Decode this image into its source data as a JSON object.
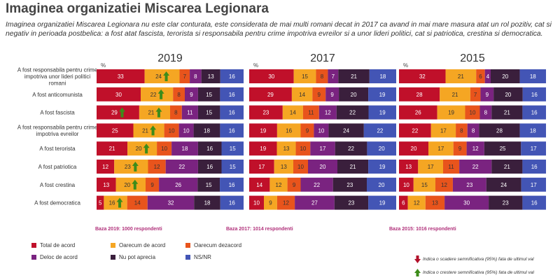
{
  "page": {
    "title": "Imaginea organizatiei Miscarea Legionara",
    "subtitle": "Imaginea organizatiei Miscarea Legionara nu este clar conturata, este considerata de mai multi romani decat in 2017 ca avand in mai mare masura atat un rol pozitiv, cat si negativ in perioada postbelica: a fost atat fascista, terorista si responsabila pentru crime impotriva evreilor si a unor lideri politici, cat si patriotica, crestina si democratica."
  },
  "colors": {
    "total_de_acord": "#c0102a",
    "oarecum_de_acord": "#f5a623",
    "oarecum_dezacord": "#e8541c",
    "deloc_de_acord": "#7a2380",
    "nu_pot_aprecia": "#3a1f3c",
    "ns_nr": "#4355b5",
    "increase_arrow": "#3d8c1a",
    "decrease_arrow": "#b2102a"
  },
  "legend": {
    "items": [
      {
        "key": "total_de_acord",
        "label": "Total de acord"
      },
      {
        "key": "oarecum_de_acord",
        "label": "Oarecum de acord"
      },
      {
        "key": "oarecum_dezacord",
        "label": "Oarecum dezacord"
      },
      {
        "key": "deloc_de_acord",
        "label": "Deloc de acord"
      },
      {
        "key": "nu_pot_aprecia",
        "label": "Nu pot aprecia"
      },
      {
        "key": "ns_nr",
        "label": "NS/NR"
      }
    ],
    "decrease_note": "Indica o scadere semnificativa (95%) fata de ultimul val",
    "increase_note": "Indica o crestere semnificativa (95%) fata de ultimul val"
  },
  "chart_data": {
    "type": "bar",
    "orientation": "horizontal",
    "stacked": true,
    "unit_label": "%",
    "categories": [
      "A fost responsabila pentru crime impotriva unor lideri politici romani",
      "A fost anticomunista",
      "A fost fascista",
      "A fost responsabila pentru crime impotriva evreilor",
      "A fost terorista",
      "A fost patriotica",
      "A fost crestina",
      "A fost democratica"
    ],
    "series_names": [
      "Total de acord",
      "Oarecum de acord",
      "Oarecum dezacord",
      "Deloc de acord",
      "Nu pot aprecia",
      "NS/NR"
    ],
    "panels": [
      {
        "year": "2019",
        "base": "Baza 2019: 1000 respondenti",
        "values": [
          [
            33,
            24,
            7,
            8,
            13,
            16
          ],
          [
            30,
            22,
            8,
            9,
            15,
            16
          ],
          [
            29,
            21,
            8,
            11,
            15,
            16
          ],
          [
            25,
            21,
            10,
            10,
            18,
            16
          ],
          [
            21,
            20,
            10,
            18,
            16,
            15
          ],
          [
            12,
            23,
            12,
            22,
            16,
            15
          ],
          [
            13,
            20,
            9,
            26,
            15,
            16
          ],
          [
            5,
            16,
            14,
            32,
            18,
            16
          ]
        ],
        "increase_markers": [
          {
            "row": 0,
            "series": 1
          },
          {
            "row": 1,
            "series": 1
          },
          {
            "row": 2,
            "series": 0
          },
          {
            "row": 2,
            "series": 1
          },
          {
            "row": 3,
            "series": 1
          },
          {
            "row": 4,
            "series": 1
          },
          {
            "row": 5,
            "series": 1
          },
          {
            "row": 6,
            "series": 1
          },
          {
            "row": 7,
            "series": 1
          }
        ]
      },
      {
        "year": "2017",
        "base": "Baza 2017: 1014 respondenti",
        "values": [
          [
            30,
            15,
            8,
            7,
            21,
            18
          ],
          [
            29,
            14,
            9,
            9,
            20,
            19
          ],
          [
            23,
            14,
            11,
            12,
            22,
            19
          ],
          [
            19,
            16,
            9,
            10,
            24,
            22
          ],
          [
            19,
            13,
            10,
            17,
            22,
            20
          ],
          [
            17,
            13,
            10,
            20,
            21,
            19
          ],
          [
            14,
            12,
            9,
            22,
            23,
            20
          ],
          [
            10,
            9,
            12,
            27,
            23,
            19
          ]
        ],
        "increase_markers": []
      },
      {
        "year": "2015",
        "base": "Baza 2015: 1016 respondenti",
        "values": [
          [
            32,
            21,
            6,
            4,
            20,
            18
          ],
          [
            28,
            21,
            7,
            9,
            20,
            16
          ],
          [
            26,
            19,
            10,
            8,
            21,
            16
          ],
          [
            22,
            17,
            8,
            8,
            28,
            18
          ],
          [
            20,
            17,
            9,
            12,
            25,
            17
          ],
          [
            13,
            17,
            11,
            22,
            21,
            16
          ],
          [
            10,
            15,
            12,
            23,
            24,
            17
          ],
          [
            6,
            12,
            13,
            30,
            23,
            16
          ]
        ],
        "increase_markers": []
      }
    ]
  }
}
